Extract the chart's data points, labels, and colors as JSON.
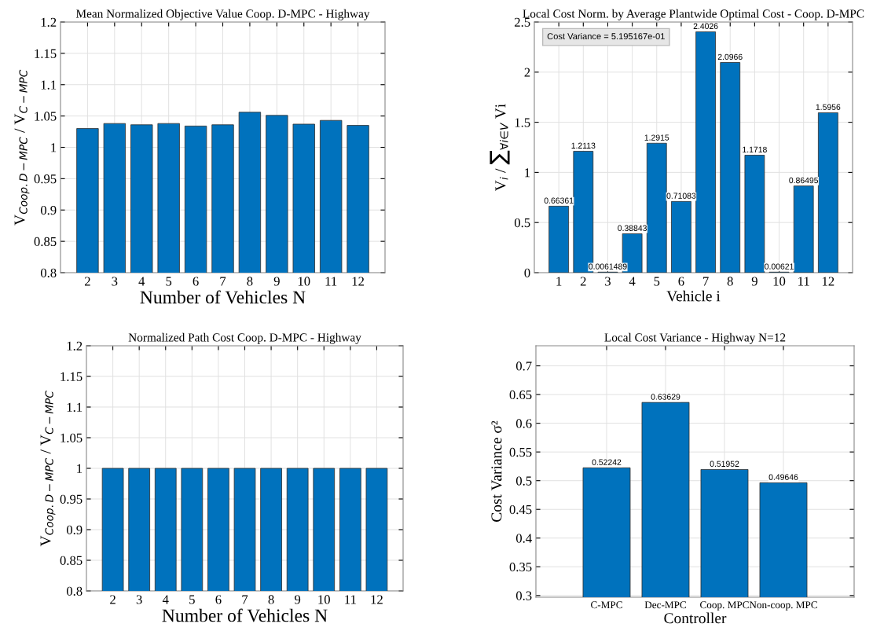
{
  "chart_data": [
    {
      "type": "bar",
      "title": "Mean Normalized Objective Value Coop. D-MPC - Highway",
      "xlabel": "Number of Vehicles N",
      "ylabel": "V$_{Coop.D−MPC}$ / V$_{C−MPC}$",
      "categories": [
        "2",
        "3",
        "4",
        "5",
        "6",
        "7",
        "8",
        "9",
        "10",
        "11",
        "12"
      ],
      "values": [
        1.03,
        1.038,
        1.036,
        1.038,
        1.034,
        1.036,
        1.056,
        1.051,
        1.037,
        1.043,
        1.035
      ],
      "color": "#0072bd",
      "ylim": [
        0.8,
        1.2
      ],
      "yticks": [
        0.8,
        0.85,
        0.9,
        0.95,
        1,
        1.05,
        1.1,
        1.15,
        1.2
      ],
      "grid": true
    },
    {
      "type": "bar",
      "title": "Local Cost Norm. by Average Plantwide Optimal Cost - Coop. D-MPC",
      "xlabel": "Vehicle i",
      "ylabel": "V$_{i}$ / ∑$_{∀i∈V}$ Vi",
      "categories": [
        "1",
        "2",
        "3",
        "4",
        "5",
        "6",
        "7",
        "8",
        "9",
        "10",
        "11",
        "12"
      ],
      "values": [
        0.66361,
        1.2113,
        0.0061489,
        0.38843,
        1.2915,
        0.71083,
        2.4026,
        2.0966,
        1.1718,
        0.00621,
        0.86495,
        1.5956
      ],
      "color": "#0072bd",
      "ylim": [
        0,
        2.5
      ],
      "yticks": [
        0,
        0.5,
        1,
        1.5,
        2,
        2.5
      ],
      "grid": true,
      "data_labels": true,
      "annotations": [
        "Cost Variance = 5.195167e-01"
      ]
    },
    {
      "type": "bar",
      "title": "Normalized Path Cost Coop. D-MPC - Highway",
      "xlabel": "Number of Vehicles N",
      "ylabel": "V$_{Coop.D−MPC}$ / V$_{C−MPC}$",
      "categories": [
        "2",
        "3",
        "4",
        "5",
        "6",
        "7",
        "8",
        "9",
        "10",
        "11",
        "12"
      ],
      "values": [
        1.0,
        1.0,
        1.0,
        1.0,
        1.0,
        1.0,
        1.0,
        1.0,
        1.0,
        1.0,
        1.0
      ],
      "color": "#0072bd",
      "ylim": [
        0.8,
        1.2
      ],
      "yticks": [
        0.8,
        0.85,
        0.9,
        0.95,
        1,
        1.05,
        1.1,
        1.15,
        1.2
      ],
      "grid": true
    },
    {
      "type": "bar",
      "title": "Local Cost Variance - Highway N=12",
      "xlabel": "Controller",
      "ylabel": "Cost Variance σ²",
      "categories": [
        "C-MPC",
        "Dec-MPC",
        "Coop. MPC",
        "Non-coop. MPC"
      ],
      "values": [
        0.52242,
        0.63629,
        0.51952,
        0.49646
      ],
      "color": "#0072bd",
      "ylim": [
        0.297,
        0.735
      ],
      "yticks": [
        0.3,
        0.35,
        0.4,
        0.45,
        0.5,
        0.55,
        0.6,
        0.65,
        0.7
      ],
      "grid": true,
      "data_labels": true
    }
  ]
}
